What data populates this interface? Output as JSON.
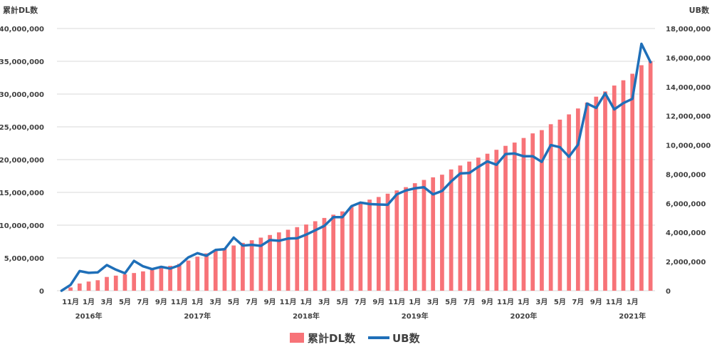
{
  "chart_data": {
    "type": "bar+line",
    "left_axis": {
      "title": "累計DL数",
      "min": 0,
      "max": 40000000,
      "step": 5000000,
      "tick_labels": [
        "0",
        "5,000,000",
        "10,000,000",
        "15,000,000",
        "20,000,000",
        "25,000,000",
        "30,000,000",
        "35,000,000",
        "40,000,000"
      ]
    },
    "right_axis": {
      "title": "UB数",
      "min": 0,
      "max": 18000000,
      "step": 2000000,
      "tick_labels": [
        "0",
        "2,000,000",
        "4,000,000",
        "6,000,000",
        "8,000,000",
        "10,000,000",
        "12,000,000",
        "14,000,000",
        "16,000,000",
        "18,000,000"
      ]
    },
    "grid": true,
    "legend_position": "bottom",
    "colors": {
      "bar": "#f77378",
      "line": "#1f6fb8",
      "grid": "#d9d9d9"
    },
    "x_month_labels": [
      {
        "index": 1,
        "label": "11月"
      },
      {
        "index": 3,
        "label": "1月"
      },
      {
        "index": 5,
        "label": "3月"
      },
      {
        "index": 7,
        "label": "5月"
      },
      {
        "index": 9,
        "label": "7月"
      },
      {
        "index": 11,
        "label": "9月"
      },
      {
        "index": 13,
        "label": "11月"
      },
      {
        "index": 15,
        "label": "1月"
      },
      {
        "index": 17,
        "label": "3月"
      },
      {
        "index": 19,
        "label": "5月"
      },
      {
        "index": 21,
        "label": "7月"
      },
      {
        "index": 23,
        "label": "9月"
      },
      {
        "index": 25,
        "label": "11月"
      },
      {
        "index": 27,
        "label": "1月"
      },
      {
        "index": 29,
        "label": "3月"
      },
      {
        "index": 31,
        "label": "5月"
      },
      {
        "index": 33,
        "label": "7月"
      },
      {
        "index": 35,
        "label": "9月"
      },
      {
        "index": 37,
        "label": "11月"
      },
      {
        "index": 39,
        "label": "1月"
      },
      {
        "index": 41,
        "label": "3月"
      },
      {
        "index": 43,
        "label": "5月"
      },
      {
        "index": 45,
        "label": "7月"
      },
      {
        "index": 47,
        "label": "9月"
      },
      {
        "index": 49,
        "label": "11月"
      },
      {
        "index": 51,
        "label": "1月"
      },
      {
        "index": 53,
        "label": "3月"
      },
      {
        "index": 55,
        "label": "5月"
      },
      {
        "index": 57,
        "label": "7月"
      },
      {
        "index": 59,
        "label": "9月"
      },
      {
        "index": 61,
        "label": "11月"
      },
      {
        "index": 63,
        "label": "1月"
      }
    ],
    "x_year_labels": [
      {
        "index": 3,
        "label": "2016年"
      },
      {
        "index": 15,
        "label": "2017年"
      },
      {
        "index": 27,
        "label": "2018年"
      },
      {
        "index": 39,
        "label": "2019年"
      },
      {
        "index": 51,
        "label": "2020年"
      },
      {
        "index": 63,
        "label": "2021年"
      }
    ],
    "series": [
      {
        "name": "累計DL数",
        "type": "bar",
        "axis": "left",
        "values": [
          0,
          500000,
          1100000,
          1400000,
          1600000,
          2100000,
          2300000,
          2500000,
          2700000,
          2950000,
          3200000,
          3500000,
          3800000,
          4100000,
          4600000,
          5200000,
          5700000,
          6200000,
          6500000,
          6900000,
          7300000,
          7700000,
          8100000,
          8500000,
          8900000,
          9300000,
          9700000,
          10100000,
          10600000,
          11100000,
          11600000,
          12100000,
          12800000,
          13400000,
          13900000,
          14300000,
          14800000,
          15300000,
          15800000,
          16400000,
          16900000,
          17300000,
          17700000,
          18500000,
          19100000,
          19700000,
          20300000,
          20900000,
          21500000,
          22100000,
          22600000,
          23300000,
          24000000,
          24500000,
          25400000,
          26100000,
          26900000,
          27800000,
          28700000,
          29600000,
          30400000,
          31300000,
          32100000,
          33100000,
          34400000,
          35000000
        ]
      },
      {
        "name": "UB数",
        "type": "line",
        "axis": "right",
        "values": [
          0,
          400000,
          1350000,
          1230000,
          1260000,
          1760000,
          1450000,
          1200000,
          2050000,
          1680000,
          1480000,
          1640000,
          1520000,
          1740000,
          2290000,
          2580000,
          2400000,
          2800000,
          2850000,
          3650000,
          3100000,
          3150000,
          3080000,
          3480000,
          3430000,
          3580000,
          3600000,
          3850000,
          4150000,
          4450000,
          5050000,
          5050000,
          5800000,
          6050000,
          5950000,
          5920000,
          5900000,
          6620000,
          6880000,
          7030000,
          7100000,
          6620000,
          6850000,
          7500000,
          8050000,
          8080000,
          8500000,
          8880000,
          8650000,
          9380000,
          9420000,
          9230000,
          9230000,
          8850000,
          10000000,
          9850000,
          9200000,
          10020000,
          12850000,
          12550000,
          13550000,
          12450000,
          12880000,
          13170000,
          16950000,
          15690000
        ]
      }
    ]
  }
}
